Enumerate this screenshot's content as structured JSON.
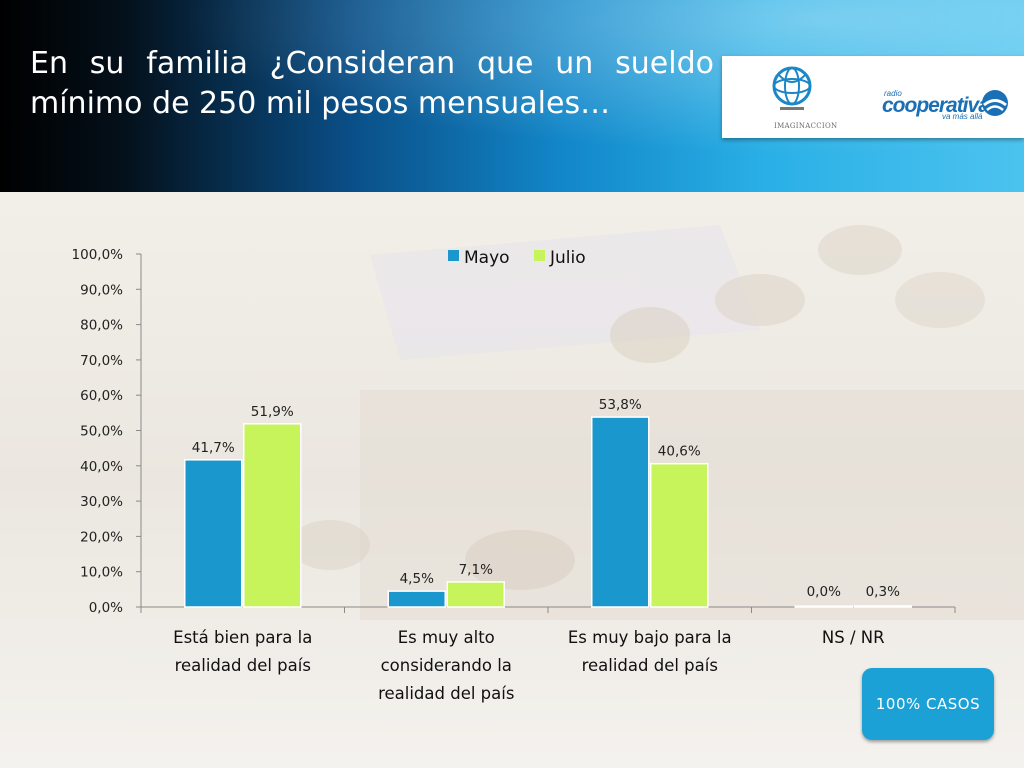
{
  "header": {
    "title": "En su familia ¿Consideran que un sueldo mínimo de 250 mil pesos mensuales…"
  },
  "logos": {
    "left_name": "IMAGINACCION",
    "left_icon": "globe-logo-icon",
    "right_small": "radio",
    "right_name": "cooperativa",
    "right_tagline": "va más allá",
    "right_icon": "cooperativa-wave-icon"
  },
  "badge": {
    "label": "100% CASOS"
  },
  "colors": {
    "mayo": "#1a97cd",
    "julio": "#c6f45a",
    "header_dark": "#000000",
    "header_light": "#4cc3ef",
    "badge": "#1ba1d6"
  },
  "chart_data": {
    "type": "bar",
    "categories": [
      [
        "Está bien para la",
        "realidad del país"
      ],
      [
        "Es muy alto",
        "considerando la",
        "realidad del país"
      ],
      [
        "Es muy bajo para la",
        "realidad del país"
      ],
      [
        "NS / NR"
      ]
    ],
    "series": [
      {
        "name": "Mayo",
        "values": [
          41.7,
          4.5,
          53.8,
          0.0
        ],
        "labels": [
          "41,7%",
          "4,5%",
          "53,8%",
          "0,0%"
        ]
      },
      {
        "name": "Julio",
        "values": [
          51.9,
          7.1,
          40.6,
          0.3
        ],
        "labels": [
          "51,9%",
          "7,1%",
          "40,6%",
          "0,3%"
        ]
      }
    ],
    "ylim": [
      0,
      100
    ],
    "yticks": [
      0,
      10,
      20,
      30,
      40,
      50,
      60,
      70,
      80,
      90,
      100
    ],
    "ytick_labels": [
      "0,0%",
      "10,0%",
      "20,0%",
      "30,0%",
      "40,0%",
      "50,0%",
      "60,0%",
      "70,0%",
      "80,0%",
      "90,0%",
      "100,0%"
    ],
    "legend": "top-center",
    "grid": false
  }
}
